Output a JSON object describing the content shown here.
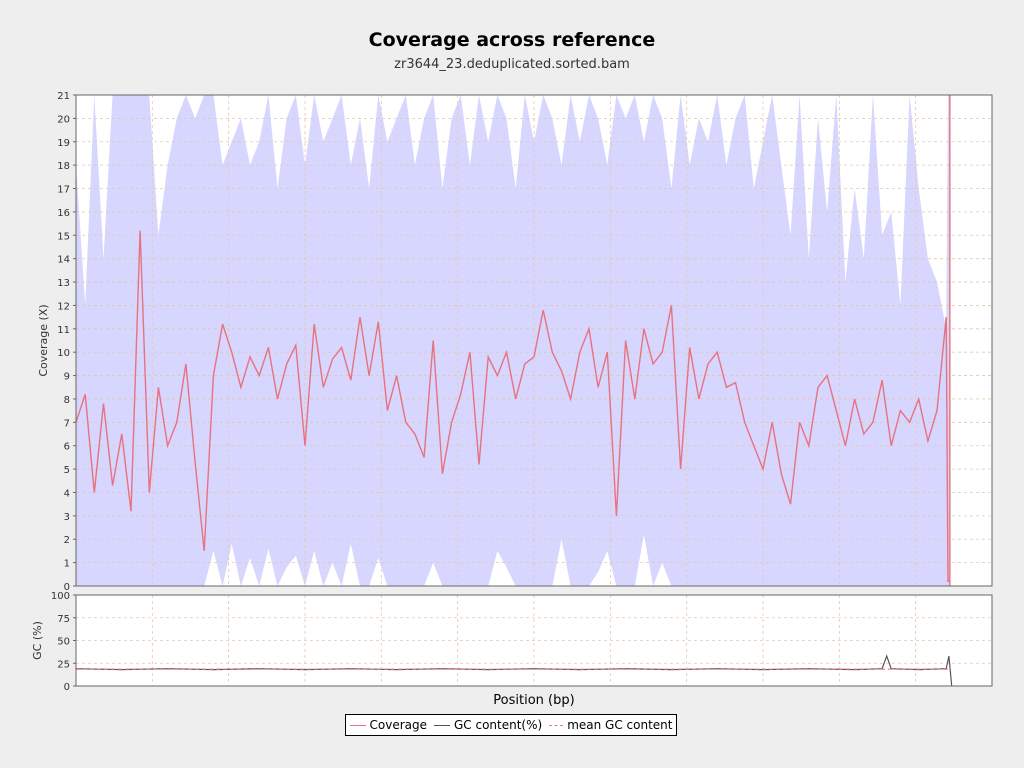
{
  "title": "Coverage across reference",
  "subtitle": "zr3644_23.deduplicated.sorted.bam",
  "colors": {
    "coverage_line": "#e8727f",
    "coverage_band": "#d6d6ff",
    "gc_line": "#555555",
    "grid": "#e6c7a8",
    "plot_bg": "#ffffff",
    "page_bg": "#eeeeee"
  },
  "legend": {
    "coverage": "Coverage",
    "gc": "GC content(%)",
    "mean_gc": "mean GC content"
  },
  "chart_data": [
    {
      "type": "line",
      "panel": "coverage",
      "ylabel": "Coverage (X)",
      "ylim": [
        0,
        21
      ],
      "yticks": [
        "0",
        "1",
        "2",
        "3",
        "4",
        "5",
        "6",
        "7",
        "8",
        "9",
        "10",
        "11",
        "12",
        "13",
        "14",
        "15",
        "16",
        "17",
        "18",
        "19",
        "20",
        "21"
      ],
      "xlim": [
        0,
        100
      ],
      "grid": true,
      "series": [
        {
          "name": "Coverage",
          "x": [
            0,
            1,
            2,
            3,
            4,
            5,
            6,
            7,
            8,
            9,
            10,
            11,
            12,
            13,
            14,
            15,
            16,
            17,
            18,
            19,
            20,
            21,
            22,
            23,
            24,
            25,
            26,
            27,
            28,
            29,
            30,
            31,
            32,
            33,
            34,
            35,
            36,
            37,
            38,
            39,
            40,
            41,
            42,
            43,
            44,
            45,
            46,
            47,
            48,
            49,
            50,
            51,
            52,
            53,
            54,
            55,
            56,
            57,
            58,
            59,
            60,
            61,
            62,
            63,
            64,
            65,
            66,
            67,
            68,
            69,
            70,
            71,
            72,
            73,
            74,
            75,
            76,
            77,
            78,
            79,
            80,
            81,
            82,
            83,
            84,
            85,
            86,
            87,
            88,
            89,
            90,
            91,
            92,
            93,
            94,
            95,
            95.2,
            95.4
          ],
          "y": [
            7.0,
            8.2,
            4.0,
            7.8,
            4.3,
            6.5,
            3.2,
            15.2,
            4.0,
            8.5,
            6.0,
            7.0,
            9.5,
            5.3,
            1.5,
            9.0,
            11.2,
            10.0,
            8.5,
            9.8,
            9.0,
            10.2,
            8.0,
            9.5,
            10.3,
            6.0,
            11.2,
            8.5,
            9.7,
            10.2,
            8.8,
            11.5,
            9.0,
            11.3,
            7.5,
            9.0,
            7.0,
            6.5,
            5.5,
            10.5,
            4.8,
            7.0,
            8.2,
            10.0,
            5.2,
            9.8,
            9.0,
            10.0,
            8.0,
            9.5,
            9.8,
            11.8,
            10.0,
            9.2,
            8.0,
            10.0,
            11.0,
            8.5,
            10.0,
            3.0,
            10.5,
            8.0,
            11.0,
            9.5,
            10.0,
            12.0,
            5.0,
            10.2,
            8.0,
            9.5,
            10.0,
            8.5,
            8.7,
            7.0,
            6.0,
            5.0,
            7.0,
            4.8,
            3.5,
            7.0,
            6.0,
            8.5,
            9.0,
            7.5,
            6.0,
            8.0,
            6.5,
            7.0,
            8.8,
            6.0,
            7.5,
            7.0,
            8.0,
            6.2,
            7.5,
            11.5,
            0.2,
            0.2
          ],
          "band_upper": [
            18,
            12,
            21,
            14,
            21,
            21,
            21,
            21,
            21,
            15,
            18,
            20,
            21,
            20,
            21,
            21,
            18,
            19,
            20,
            18,
            19,
            21,
            17,
            20,
            21,
            18,
            21,
            19,
            20,
            21,
            18,
            20,
            17,
            21,
            19,
            20,
            21,
            18,
            20,
            21,
            17,
            20,
            21,
            18,
            21,
            19,
            21,
            20,
            17,
            21,
            19,
            21,
            20,
            18,
            21,
            19,
            21,
            20,
            18,
            21,
            20,
            21,
            19,
            21,
            20,
            17,
            21,
            18,
            20,
            19,
            21,
            18,
            20,
            21,
            17,
            19,
            21,
            18,
            15,
            21,
            14,
            20,
            16,
            21,
            13,
            17,
            14,
            21,
            15,
            16,
            12,
            21,
            17,
            14,
            13,
            11,
            21,
            21
          ],
          "band_lower": [
            0,
            0,
            0,
            0,
            0,
            0,
            0,
            0,
            0,
            0,
            0,
            0,
            0,
            0,
            0,
            1.5,
            0,
            1.8,
            0,
            1.2,
            0,
            1.6,
            0,
            0.8,
            1.3,
            0,
            1.5,
            0,
            1.0,
            0,
            1.8,
            0,
            0,
            1.2,
            0,
            0,
            0,
            0,
            0,
            1.0,
            0,
            0,
            0,
            0,
            0,
            0,
            1.5,
            0.8,
            0,
            0,
            0,
            0,
            0,
            2.0,
            0,
            0,
            0,
            0.6,
            1.5,
            0,
            0,
            0,
            2.2,
            0,
            1.0,
            0,
            0,
            0,
            0,
            0,
            0,
            0,
            0,
            0,
            0,
            0,
            0,
            0,
            0,
            0,
            0,
            0,
            0,
            0,
            0,
            0,
            0,
            0,
            0,
            0,
            0,
            0,
            0,
            0,
            0,
            0,
            0,
            0
          ]
        }
      ]
    },
    {
      "type": "line",
      "panel": "gc",
      "ylabel": "GC (%)",
      "ylim": [
        0,
        100
      ],
      "yticks": [
        "0",
        "25",
        "50",
        "75",
        "100"
      ],
      "xlabel": "Position (bp)",
      "grid": true,
      "series": [
        {
          "name": "GC content(%)",
          "x": [
            0,
            5,
            10,
            15,
            20,
            25,
            30,
            35,
            40,
            45,
            50,
            55,
            60,
            65,
            70,
            75,
            80,
            85,
            88,
            88.5,
            89,
            92,
            95,
            95.3,
            95.6
          ],
          "y": [
            19,
            18,
            19,
            18,
            19,
            18,
            19,
            18,
            19,
            18,
            19,
            18,
            19,
            18,
            19,
            18,
            19,
            18,
            19,
            33,
            19,
            18,
            19,
            33,
            0
          ]
        },
        {
          "name": "mean GC content",
          "x": [
            0,
            95.4
          ],
          "y": [
            18.5,
            18.5
          ]
        }
      ]
    }
  ]
}
